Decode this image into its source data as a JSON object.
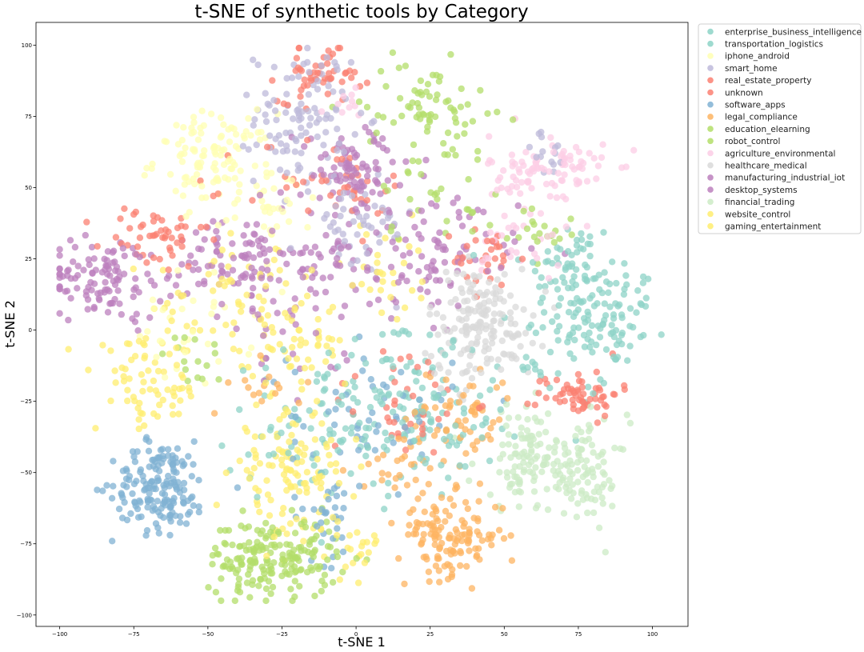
{
  "chart_data": {
    "type": "scatter",
    "title": "t-SNE of synthetic tools by Category",
    "xlabel": "t-SNE 1",
    "ylabel": "t-SNE 2",
    "xlim": [
      -108,
      112
    ],
    "ylim": [
      -104,
      108
    ],
    "xticks": [
      -100,
      -75,
      -50,
      -25,
      0,
      25,
      50,
      75,
      100
    ],
    "yticks": [
      -100,
      -75,
      -50,
      -25,
      0,
      25,
      50,
      75,
      100
    ],
    "grid": false,
    "legend_position": "outside-top-right",
    "marker_alpha": 0.75,
    "series": [
      {
        "name": "enterprise_business_intelligence",
        "color": "#8dd3c7",
        "clusters": [
          {
            "cx": 85,
            "cy": 5,
            "sx": 9,
            "sy": 9,
            "n": 90
          },
          {
            "cx": 72,
            "cy": 22,
            "sx": 8,
            "sy": 9,
            "n": 60
          },
          {
            "cx": 10,
            "cy": -20,
            "sx": 14,
            "sy": 13,
            "n": 70
          }
        ]
      },
      {
        "name": "transportation_logistics",
        "color": "#8dd3c7",
        "clusters": [
          {
            "cx": 20,
            "cy": -35,
            "sx": 14,
            "sy": 12,
            "n": 90
          },
          {
            "cx": -20,
            "cy": -35,
            "sx": 12,
            "sy": 12,
            "n": 40
          },
          {
            "cx": 65,
            "cy": -10,
            "sx": 10,
            "sy": 10,
            "n": 40
          }
        ]
      },
      {
        "name": "iphone_android",
        "color": "#ffffb3",
        "clusters": [
          {
            "cx": -48,
            "cy": 60,
            "sx": 10,
            "sy": 8,
            "n": 110
          },
          {
            "cx": -30,
            "cy": 45,
            "sx": 8,
            "sy": 8,
            "n": 35
          },
          {
            "cx": -55,
            "cy": 0,
            "sx": 10,
            "sy": 10,
            "n": 30
          }
        ]
      },
      {
        "name": "smart_home",
        "color": "#bebada",
        "clusters": [
          {
            "cx": -18,
            "cy": 75,
            "sx": 8,
            "sy": 12,
            "n": 110
          },
          {
            "cx": 0,
            "cy": 35,
            "sx": 10,
            "sy": 9,
            "n": 50
          },
          {
            "cx": 65,
            "cy": 62,
            "sx": 5,
            "sy": 4,
            "n": 15
          }
        ]
      },
      {
        "name": "real_estate_property",
        "color": "#fb8072",
        "clusters": [
          {
            "cx": -12,
            "cy": 90,
            "sx": 7,
            "sy": 5,
            "n": 50
          },
          {
            "cx": -68,
            "cy": 32,
            "sx": 9,
            "sy": 6,
            "n": 50
          },
          {
            "cx": 75,
            "cy": -22,
            "sx": 7,
            "sy": 4,
            "n": 60
          },
          {
            "cx": 45,
            "cy": 25,
            "sx": 6,
            "sy": 6,
            "n": 30
          },
          {
            "cx": 15,
            "cy": -25,
            "sx": 12,
            "sy": 10,
            "n": 40
          }
        ]
      },
      {
        "name": "unknown",
        "color": "#fb8072",
        "clusters": [
          {
            "cx": -15,
            "cy": 50,
            "sx": 12,
            "sy": 10,
            "n": 30
          },
          {
            "cx": 5,
            "cy": 50,
            "sx": 6,
            "sy": 5,
            "n": 15
          }
        ]
      },
      {
        "name": "software_apps",
        "color": "#80b1d3",
        "clusters": [
          {
            "cx": -66,
            "cy": -55,
            "sx": 8,
            "sy": 8,
            "n": 170
          },
          {
            "cx": -10,
            "cy": -65,
            "sx": 6,
            "sy": 8,
            "n": 30
          },
          {
            "cx": 5,
            "cy": -30,
            "sx": 14,
            "sy": 12,
            "n": 60
          }
        ]
      },
      {
        "name": "legal_compliance",
        "color": "#fdb462",
        "clusters": [
          {
            "cx": 32,
            "cy": -72,
            "sx": 9,
            "sy": 7,
            "n": 130
          },
          {
            "cx": 35,
            "cy": -30,
            "sx": 9,
            "sy": 9,
            "n": 60
          },
          {
            "cx": 15,
            "cy": -50,
            "sx": 8,
            "sy": 8,
            "n": 30
          },
          {
            "cx": -30,
            "cy": -20,
            "sx": 6,
            "sy": 5,
            "n": 15
          }
        ]
      },
      {
        "name": "education_elearning",
        "color": "#b3de69",
        "clusters": [
          {
            "cx": -28,
            "cy": -80,
            "sx": 11,
            "sy": 7,
            "n": 190
          },
          {
            "cx": 25,
            "cy": 80,
            "sx": 11,
            "sy": 7,
            "n": 60
          },
          {
            "cx": -55,
            "cy": -10,
            "sx": 5,
            "sy": 5,
            "n": 15
          }
        ]
      },
      {
        "name": "robot_control",
        "color": "#b3de69",
        "clusters": [
          {
            "cx": 25,
            "cy": 55,
            "sx": 10,
            "sy": 12,
            "n": 40
          },
          {
            "cx": 60,
            "cy": 35,
            "sx": 8,
            "sy": 5,
            "n": 20
          }
        ]
      },
      {
        "name": "agriculture_environmental",
        "color": "#fccde5",
        "clusters": [
          {
            "cx": 65,
            "cy": 55,
            "sx": 10,
            "sy": 7,
            "n": 100
          },
          {
            "cx": 55,
            "cy": 30,
            "sx": 8,
            "sy": 6,
            "n": 25
          },
          {
            "cx": 0,
            "cy": 80,
            "sx": 5,
            "sy": 4,
            "n": 10
          }
        ]
      },
      {
        "name": "healthcare_medical",
        "color": "#d9d9d9",
        "clusters": [
          {
            "cx": 42,
            "cy": 2,
            "sx": 9,
            "sy": 10,
            "n": 170
          }
        ]
      },
      {
        "name": "manufacturing_industrial_iot",
        "color": "#bc80bd",
        "clusters": [
          {
            "cx": -85,
            "cy": 18,
            "sx": 10,
            "sy": 7,
            "n": 110
          },
          {
            "cx": -40,
            "cy": 25,
            "sx": 11,
            "sy": 8,
            "n": 100
          }
        ]
      },
      {
        "name": "desktop_systems",
        "color": "#bc80bd",
        "clusters": [
          {
            "cx": 0,
            "cy": 55,
            "sx": 10,
            "sy": 8,
            "n": 90
          },
          {
            "cx": 25,
            "cy": 25,
            "sx": 15,
            "sy": 10,
            "n": 90
          },
          {
            "cx": -10,
            "cy": 25,
            "sx": 10,
            "sy": 8,
            "n": 40
          },
          {
            "cx": -25,
            "cy": -5,
            "sx": 10,
            "sy": 8,
            "n": 25
          }
        ]
      },
      {
        "name": "financial_trading",
        "color": "#ccebc5",
        "clusters": [
          {
            "cx": 58,
            "cy": -45,
            "sx": 9,
            "sy": 9,
            "n": 110
          },
          {
            "cx": 78,
            "cy": -50,
            "sx": 7,
            "sy": 9,
            "n": 90
          }
        ]
      },
      {
        "name": "website_control",
        "color": "#ffed6f",
        "clusters": [
          {
            "cx": -22,
            "cy": -50,
            "sx": 10,
            "sy": 11,
            "n": 120
          },
          {
            "cx": -70,
            "cy": -20,
            "sx": 9,
            "sy": 8,
            "n": 70
          },
          {
            "cx": -20,
            "cy": -5,
            "sx": 8,
            "sy": 8,
            "n": 50
          }
        ]
      },
      {
        "name": "gaming_entertainment",
        "color": "#ffed6f",
        "clusters": [
          {
            "cx": -40,
            "cy": 10,
            "sx": 14,
            "sy": 10,
            "n": 60
          },
          {
            "cx": 0,
            "cy": -75,
            "sx": 4,
            "sy": 4,
            "n": 20
          },
          {
            "cx": 10,
            "cy": 20,
            "sx": 10,
            "sy": 8,
            "n": 30
          }
        ]
      }
    ]
  }
}
